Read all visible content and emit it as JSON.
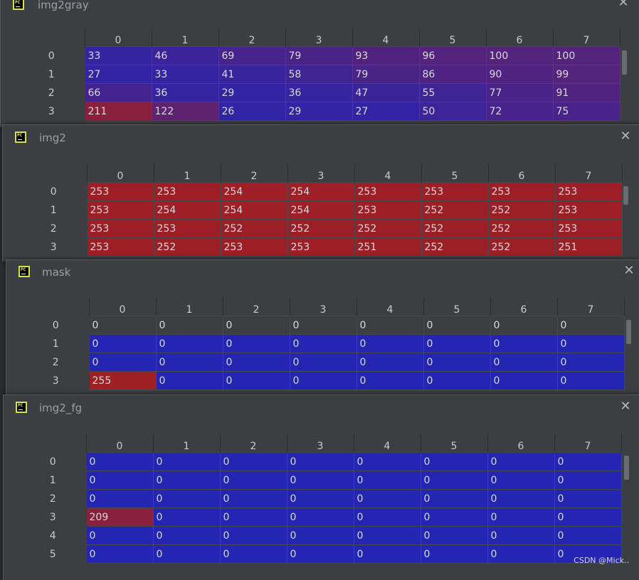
{
  "windows": [
    {
      "title": "img2gray",
      "columns": [
        "0",
        "1",
        "2",
        "3",
        "4",
        "5",
        "6",
        "7"
      ],
      "rows": [
        {
          "index": "0",
          "cells": [
            "33",
            "46",
            "69",
            "79",
            "93",
            "96",
            "100",
            "100"
          ]
        },
        {
          "index": "1",
          "cells": [
            "27",
            "33",
            "41",
            "58",
            "79",
            "86",
            "90",
            "99"
          ]
        },
        {
          "index": "2",
          "cells": [
            "66",
            "36",
            "29",
            "36",
            "47",
            "55",
            "77",
            "91"
          ]
        },
        {
          "index": "3",
          "cells": [
            "211",
            "122",
            "26",
            "29",
            "27",
            "50",
            "72",
            "75"
          ]
        }
      ]
    },
    {
      "title": "img2",
      "columns": [
        "0",
        "1",
        "2",
        "3",
        "4",
        "5",
        "6",
        "7"
      ],
      "rows": [
        {
          "index": "0",
          "cells": [
            "253",
            "253",
            "254",
            "254",
            "253",
            "253",
            "253",
            "253"
          ]
        },
        {
          "index": "1",
          "cells": [
            "253",
            "254",
            "254",
            "254",
            "253",
            "252",
            "252",
            "253"
          ]
        },
        {
          "index": "2",
          "cells": [
            "253",
            "253",
            "252",
            "252",
            "252",
            "252",
            "252",
            "253"
          ]
        },
        {
          "index": "3",
          "cells": [
            "253",
            "252",
            "253",
            "253",
            "251",
            "252",
            "252",
            "251"
          ]
        }
      ]
    },
    {
      "title": "mask",
      "columns": [
        "0",
        "1",
        "2",
        "3",
        "4",
        "5",
        "6",
        "7"
      ],
      "rows": [
        {
          "index": "0",
          "cells": [
            "0",
            "0",
            "0",
            "0",
            "0",
            "0",
            "0",
            "0"
          ]
        },
        {
          "index": "1",
          "cells": [
            "0",
            "0",
            "0",
            "0",
            "0",
            "0",
            "0",
            "0"
          ]
        },
        {
          "index": "2",
          "cells": [
            "0",
            "0",
            "0",
            "0",
            "0",
            "0",
            "0",
            "0"
          ]
        },
        {
          "index": "3",
          "cells": [
            "255",
            "0",
            "0",
            "0",
            "0",
            "0",
            "0",
            "0"
          ]
        }
      ]
    },
    {
      "title": "img2_fg",
      "columns": [
        "0",
        "1",
        "2",
        "3",
        "4",
        "5",
        "6",
        "7"
      ],
      "rows": [
        {
          "index": "0",
          "cells": [
            "0",
            "0",
            "0",
            "0",
            "0",
            "0",
            "0",
            "0"
          ]
        },
        {
          "index": "1",
          "cells": [
            "0",
            "0",
            "0",
            "0",
            "0",
            "0",
            "0",
            "0"
          ]
        },
        {
          "index": "2",
          "cells": [
            "0",
            "0",
            "0",
            "0",
            "0",
            "0",
            "0",
            "0"
          ]
        },
        {
          "index": "3",
          "cells": [
            "209",
            "0",
            "0",
            "0",
            "0",
            "0",
            "0",
            "0"
          ]
        },
        {
          "index": "4",
          "cells": [
            "0",
            "0",
            "0",
            "0",
            "0",
            "0",
            "0",
            "0"
          ]
        },
        {
          "index": "5",
          "cells": [
            "0",
            "0",
            "0",
            "0",
            "0",
            "0",
            "0",
            "0"
          ]
        }
      ]
    }
  ],
  "icons": {
    "app_icon": "pycharm-icon",
    "close_icon": "close-icon"
  },
  "colors": {
    "high": "#9e1f24",
    "low": "#2525b4"
  },
  "watermark": "CSDN @Mick.."
}
